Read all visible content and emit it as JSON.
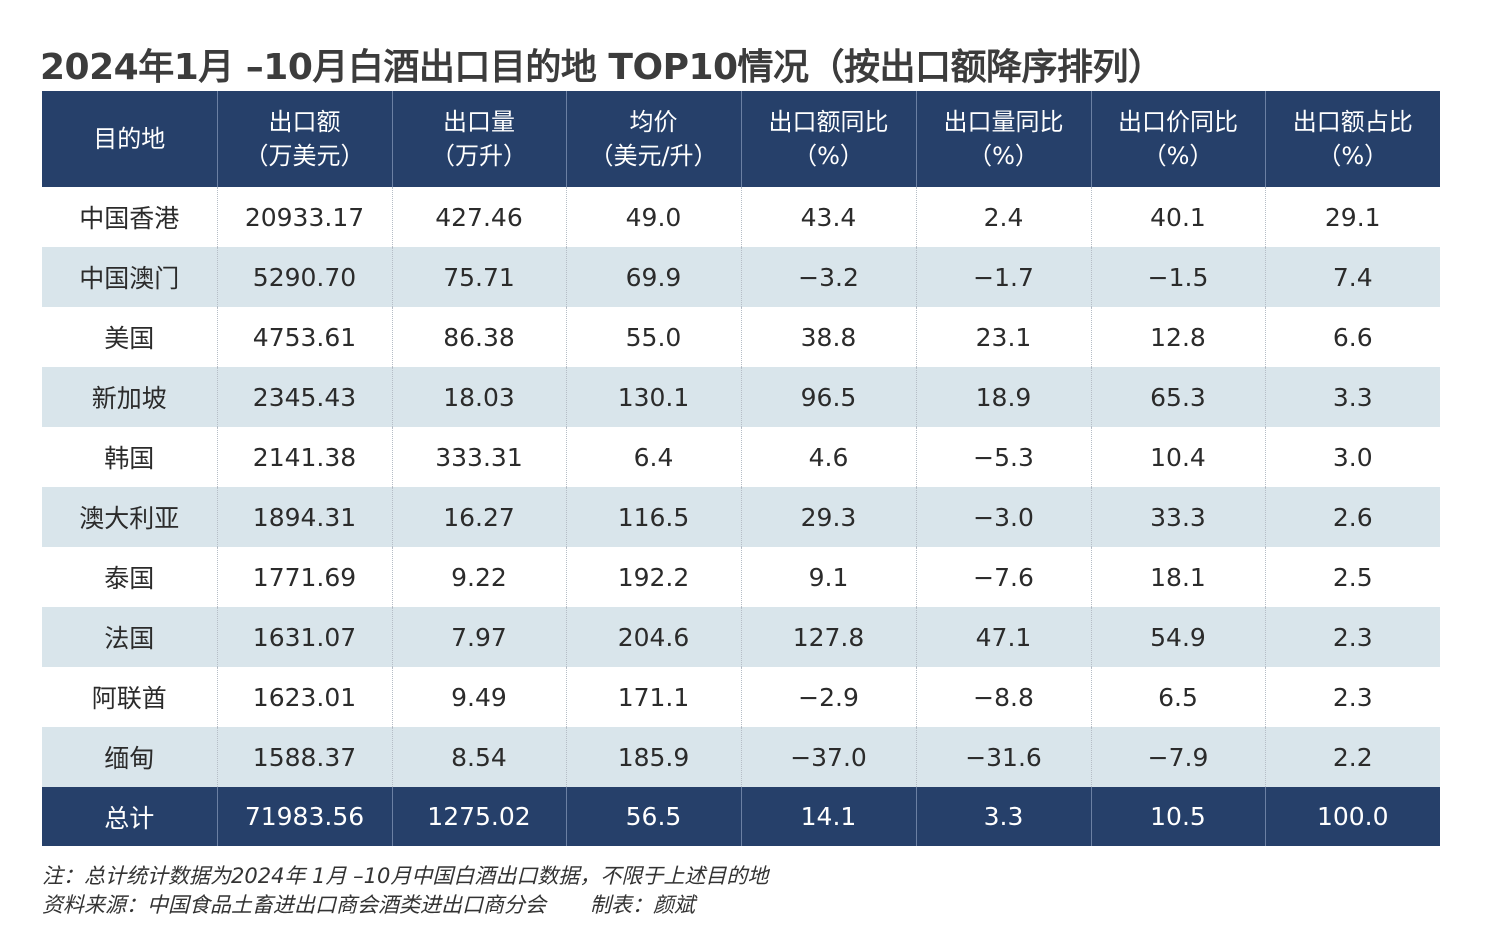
{
  "title": "2024年1月 –10月白酒出口目的地 TOP10情况（按出口额降序排列）",
  "chart_data": {
    "type": "table",
    "title": "2024年1月 –10月白酒出口目的地 TOP10情况（按出口额降序排列）",
    "columns": [
      {
        "line1": "目的地",
        "line2": ""
      },
      {
        "line1": "出口额",
        "line2": "（万美元）"
      },
      {
        "line1": "出口量",
        "line2": "（万升）"
      },
      {
        "line1": "均价",
        "line2": "（美元/升）"
      },
      {
        "line1": "出口额同比",
        "line2": "（%）"
      },
      {
        "line1": "出口量同比",
        "line2": "（%）"
      },
      {
        "line1": "出口价同比",
        "line2": "（%）"
      },
      {
        "line1": "出口额占比",
        "line2": "（%）"
      }
    ],
    "rows": [
      [
        "中国香港",
        "20933.17",
        "427.46",
        "49.0",
        "43.4",
        "2.4",
        "40.1",
        "29.1"
      ],
      [
        "中国澳门",
        "5290.70",
        "75.71",
        "69.9",
        "−3.2",
        "−1.7",
        "−1.5",
        "7.4"
      ],
      [
        "美国",
        "4753.61",
        "86.38",
        "55.0",
        "38.8",
        "23.1",
        "12.8",
        "6.6"
      ],
      [
        "新加坡",
        "2345.43",
        "18.03",
        "130.1",
        "96.5",
        "18.9",
        "65.3",
        "3.3"
      ],
      [
        "韩国",
        "2141.38",
        "333.31",
        "6.4",
        "4.6",
        "−5.3",
        "10.4",
        "3.0"
      ],
      [
        "澳大利亚",
        "1894.31",
        "16.27",
        "116.5",
        "29.3",
        "−3.0",
        "33.3",
        "2.6"
      ],
      [
        "泰国",
        "1771.69",
        "9.22",
        "192.2",
        "9.1",
        "−7.6",
        "18.1",
        "2.5"
      ],
      [
        "法国",
        "1631.07",
        "7.97",
        "204.6",
        "127.8",
        "47.1",
        "54.9",
        "2.3"
      ],
      [
        "阿联酋",
        "1623.01",
        "9.49",
        "171.1",
        "−2.9",
        "−8.8",
        "6.5",
        "2.3"
      ],
      [
        "缅甸",
        "1588.37",
        "8.54",
        "185.9",
        "−37.0",
        "−31.6",
        "−7.9",
        "2.2"
      ]
    ],
    "total": [
      "总计",
      "71983.56",
      "1275.02",
      "56.5",
      "14.1",
      "3.3",
      "10.5",
      "100.0"
    ]
  },
  "notes": {
    "note": "注：总计统计数据为2024年 1月 –10月中国白酒出口数据，不限于上述目的地",
    "source": "资料来源：中国食品土畜进出口商会酒类进出口商分会",
    "maker": "制表：颜斌"
  },
  "colors": {
    "header_bg": "#26406a",
    "stripe_bg": "#d9e5eb",
    "header_text": "#ffffff"
  }
}
